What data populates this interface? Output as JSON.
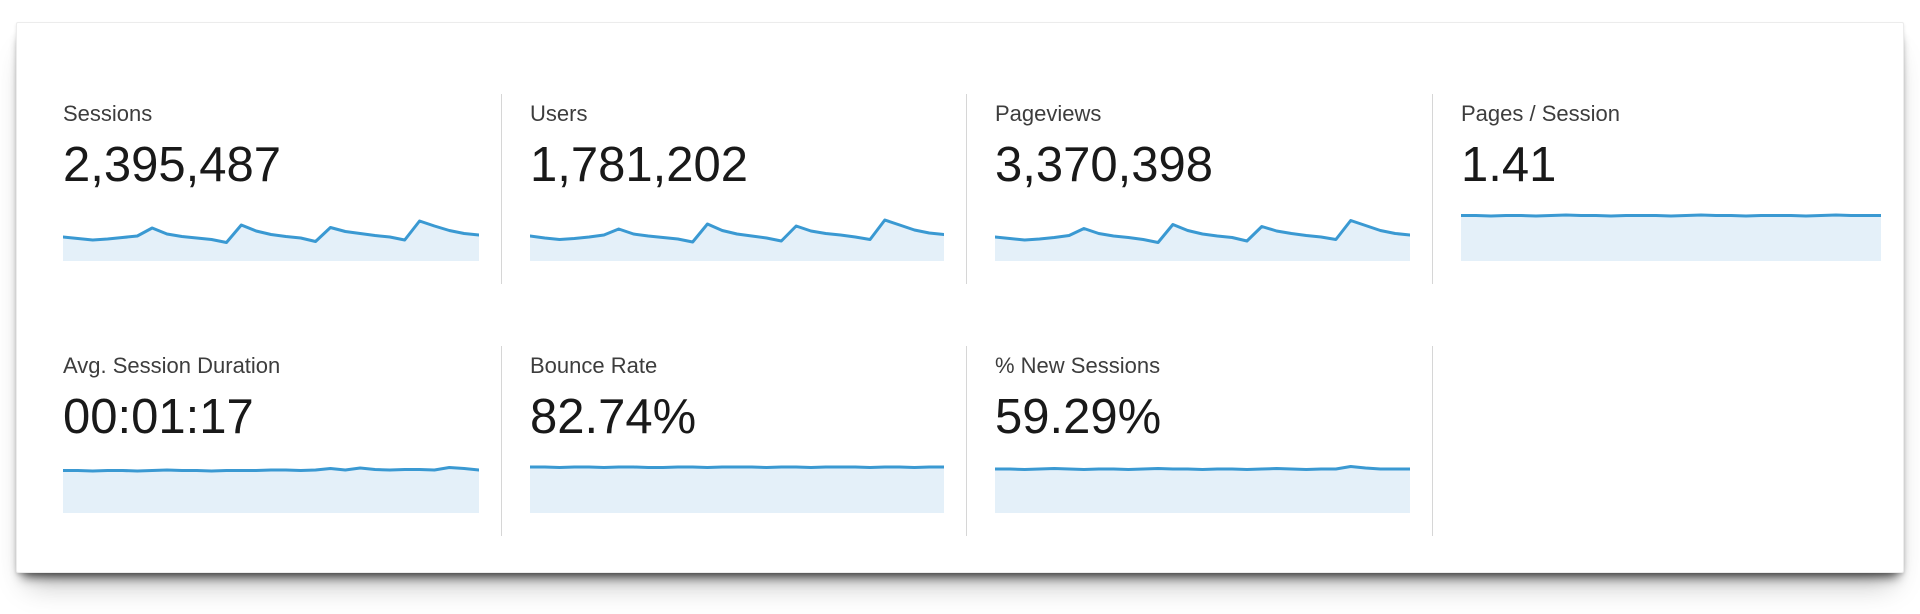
{
  "panel": {
    "colors": {
      "spark_line": "#3a99d2",
      "spark_fill": "#e4f0f9",
      "divider": "#d6d6d6",
      "label_text": "#3d3d3d",
      "value_text": "#191919",
      "panel_background": "#ffffff"
    },
    "cards": [
      {
        "id": "sessions",
        "label": "Sessions",
        "value": "2,395,487",
        "chart_index": 0
      },
      {
        "id": "users",
        "label": "Users",
        "value": "1,781,202",
        "chart_index": 1
      },
      {
        "id": "pageviews",
        "label": "Pageviews",
        "value": "3,370,398",
        "chart_index": 2
      },
      {
        "id": "pages-per-session",
        "label": "Pages / Session",
        "value": "1.41",
        "chart_index": 3
      },
      {
        "id": "avg-session-duration",
        "label": "Avg. Session Duration",
        "value": "00:01:17",
        "chart_index": 4
      },
      {
        "id": "bounce-rate",
        "label": "Bounce Rate",
        "value": "82.74%",
        "chart_index": 5
      },
      {
        "id": "pct-new-sessions",
        "label": "% New Sessions",
        "value": "59.29%",
        "chart_index": 6
      }
    ]
  },
  "chart_data": [
    {
      "type": "area",
      "title": "Sessions sparkline",
      "headline_value": "2,395,487",
      "xlabel": "",
      "ylabel": "",
      "axes_shown": false,
      "note": "unlabeled daily trend sparkline (~4 weeks) with weekly peaks; values are estimated percent-from-top of the sparkline box",
      "y_percent_from_top": [
        52,
        55,
        58,
        56,
        53,
        50,
        34,
        46,
        51,
        54,
        57,
        63,
        28,
        40,
        47,
        51,
        54,
        61,
        33,
        41,
        45,
        49,
        52,
        58,
        20,
        30,
        39,
        45,
        48
      ]
    },
    {
      "type": "area",
      "title": "Users sparkline",
      "headline_value": "1,781,202",
      "xlabel": "",
      "ylabel": "",
      "axes_shown": false,
      "note": "unlabeled daily trend sparkline with weekly peaks",
      "y_percent_from_top": [
        50,
        54,
        57,
        55,
        52,
        48,
        36,
        46,
        50,
        53,
        56,
        62,
        26,
        39,
        46,
        50,
        54,
        60,
        30,
        40,
        45,
        48,
        52,
        57,
        18,
        28,
        38,
        44,
        47
      ]
    },
    {
      "type": "area",
      "title": "Pageviews sparkline",
      "headline_value": "3,370,398",
      "xlabel": "",
      "ylabel": "",
      "axes_shown": false,
      "note": "unlabeled daily trend sparkline with weekly peaks",
      "y_percent_from_top": [
        52,
        55,
        58,
        56,
        53,
        49,
        35,
        45,
        50,
        53,
        57,
        63,
        27,
        39,
        46,
        50,
        53,
        60,
        31,
        40,
        45,
        49,
        52,
        57,
        19,
        29,
        39,
        45,
        48
      ]
    },
    {
      "type": "area",
      "title": "Pages / Session sparkline",
      "headline_value": "1.41",
      "xlabel": "",
      "ylabel": "",
      "axes_shown": false,
      "note": "nearly flat line at top of filled band",
      "y_percent_from_top": [
        9,
        9,
        10,
        9,
        9,
        10,
        9,
        8,
        9,
        9,
        10,
        9,
        9,
        9,
        10,
        9,
        8,
        9,
        9,
        10,
        9,
        9,
        9,
        10,
        9,
        8,
        9,
        9,
        9
      ]
    },
    {
      "type": "area",
      "title": "Avg. Session Duration sparkline",
      "headline_value": "00:01:17",
      "xlabel": "",
      "ylabel": "",
      "axes_shown": false,
      "note": "nearly flat line with tiny wiggles toward the right",
      "y_percent_from_top": [
        15,
        15,
        16,
        15,
        15,
        16,
        15,
        14,
        15,
        15,
        16,
        15,
        15,
        15,
        14,
        14,
        15,
        14,
        11,
        14,
        10,
        13,
        14,
        13,
        13,
        14,
        9,
        11,
        14
      ]
    },
    {
      "type": "area",
      "title": "Bounce Rate sparkline",
      "headline_value": "82.74%",
      "xlabel": "",
      "ylabel": "",
      "axes_shown": false,
      "note": "flat line at top of filled band",
      "y_percent_from_top": [
        8,
        8,
        9,
        8,
        8,
        9,
        8,
        8,
        9,
        9,
        8,
        8,
        9,
        8,
        8,
        8,
        9,
        8,
        8,
        9,
        8,
        8,
        8,
        9,
        8,
        8,
        9,
        8,
        8
      ]
    },
    {
      "type": "area",
      "title": "% New Sessions sparkline",
      "headline_value": "59.29%",
      "xlabel": "",
      "ylabel": "",
      "axes_shown": false,
      "note": "flat line with a small bump near the right end",
      "y_percent_from_top": [
        12,
        12,
        13,
        12,
        11,
        12,
        13,
        12,
        12,
        13,
        12,
        11,
        12,
        12,
        13,
        12,
        12,
        13,
        12,
        11,
        12,
        13,
        12,
        12,
        7,
        10,
        12,
        12,
        12
      ]
    }
  ]
}
